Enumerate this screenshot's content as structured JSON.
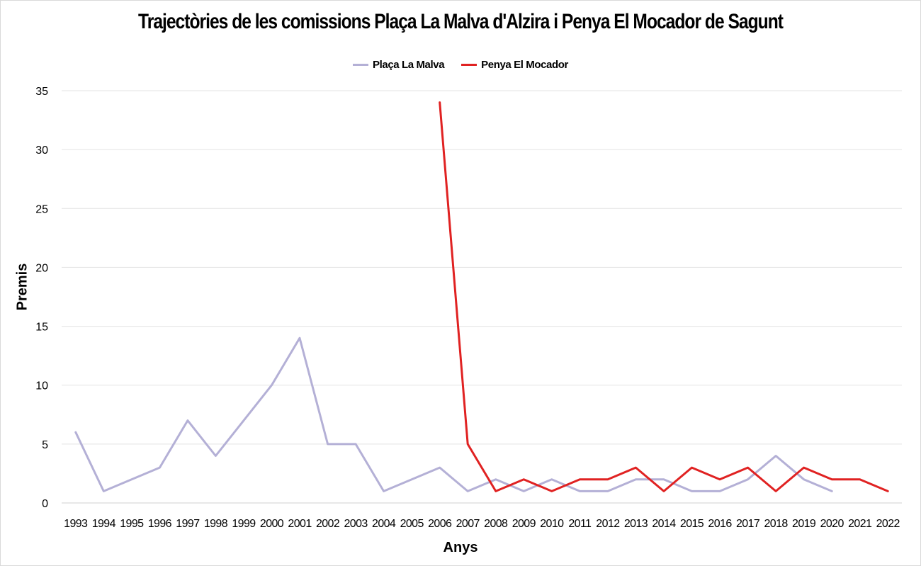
{
  "chart_data": {
    "type": "line",
    "title": "Trajectòries de les comissions Plaça La Malva d'Alzira i Penya El Mocador de Sagunt",
    "xlabel": "Anys",
    "ylabel": "Premis",
    "ylim": [
      0,
      35
    ],
    "yticks": [
      0,
      5,
      10,
      15,
      20,
      25,
      30,
      35
    ],
    "grid": true,
    "legend_position": "top-center",
    "categories": [
      "1993",
      "1994",
      "1995",
      "1996",
      "1997",
      "1998",
      "1999",
      "2000",
      "2001",
      "2002",
      "2003",
      "2004",
      "2005",
      "2006",
      "2007",
      "2008",
      "2009",
      "2010",
      "2011",
      "2012",
      "2013",
      "2014",
      "2015",
      "2016",
      "2017",
      "2018",
      "2019",
      "2020",
      "2021",
      "2022"
    ],
    "series": [
      {
        "name": "Plaça La Malva",
        "color": "#b4b0d6",
        "values": [
          6,
          1,
          2,
          3,
          7,
          4,
          7,
          10,
          14,
          5,
          5,
          1,
          2,
          3,
          1,
          2,
          1,
          2,
          1,
          1,
          2,
          2,
          1,
          1,
          2,
          4,
          2,
          1,
          null,
          null
        ]
      },
      {
        "name": "Penya El Mocador",
        "color": "#e02222",
        "values": [
          null,
          null,
          null,
          null,
          null,
          null,
          null,
          null,
          null,
          null,
          null,
          null,
          null,
          34,
          5,
          1,
          2,
          1,
          2,
          2,
          3,
          1,
          3,
          2,
          3,
          1,
          3,
          2,
          2,
          1
        ]
      }
    ]
  }
}
